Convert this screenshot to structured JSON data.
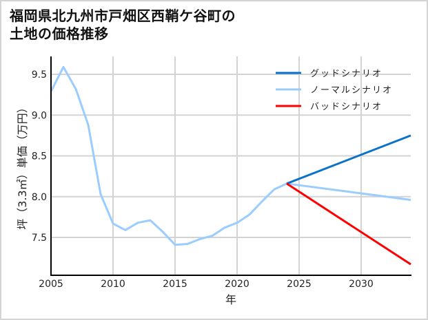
{
  "title": {
    "line1": "福岡県北九州市戸畑区西鞘ケ谷町の",
    "line2": "土地の価格推移"
  },
  "chart_data": {
    "type": "line",
    "title": "福岡県北九州市戸畑区西鞘ケ谷町の土地の価格推移",
    "xlabel": "年",
    "ylabel": "坪（3.3㎡）単価（万円）",
    "xlim": [
      2005,
      2034
    ],
    "ylim": [
      7.28,
      9.7
    ],
    "x_ticks": [
      "2005",
      "2010",
      "2015",
      "2020",
      "2025",
      "2030"
    ],
    "y_ticks": [
      "7.5",
      "8.0",
      "8.5",
      "9.0",
      "9.5"
    ],
    "grid": true,
    "legend_position": "upper right",
    "series": [
      {
        "name": "グッドシナリオ",
        "color": "#0a72c8",
        "x": [
          2024,
          2034
        ],
        "values": [
          8.16,
          8.75
        ]
      },
      {
        "name": "ノーマルシナリオ",
        "color": "#99ccff",
        "x": [
          2005,
          2006,
          2007,
          2008,
          2009,
          2010,
          2011,
          2012,
          2013,
          2014,
          2015,
          2016,
          2017,
          2018,
          2019,
          2020,
          2021,
          2022,
          2023,
          2024,
          2034
        ],
        "values": [
          9.29,
          9.59,
          9.32,
          8.88,
          8.03,
          7.67,
          7.59,
          7.68,
          7.71,
          7.57,
          7.41,
          7.42,
          7.48,
          7.52,
          7.62,
          7.68,
          7.78,
          7.94,
          8.09,
          8.16,
          7.96
        ]
      },
      {
        "name": "バッドシナリオ",
        "color": "#ff0000",
        "x": [
          2024,
          2034
        ],
        "values": [
          8.16,
          7.17
        ]
      }
    ]
  }
}
